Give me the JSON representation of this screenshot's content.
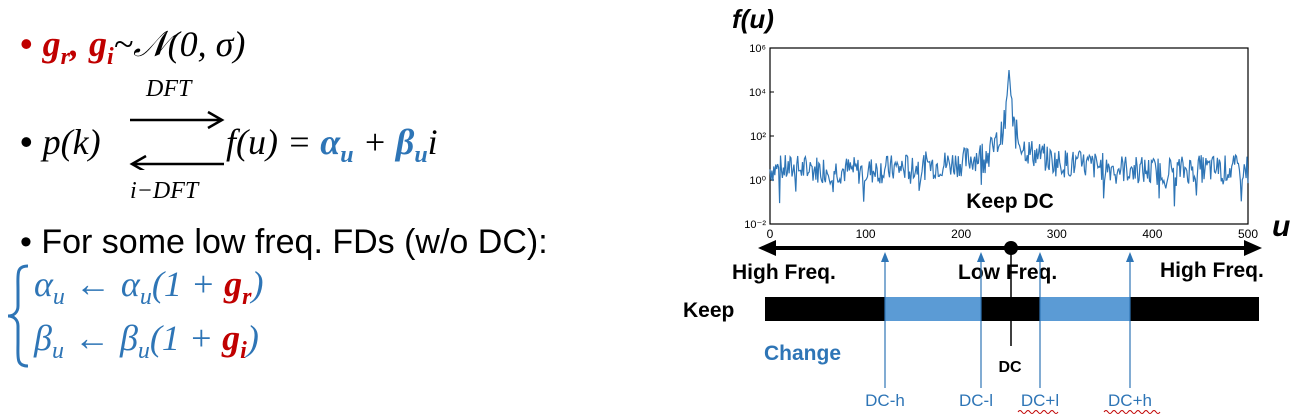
{
  "left": {
    "bullet1": {
      "gr": "g",
      "gr_sub": "r",
      "gi": "g",
      "gi_sub": "i",
      "sep": ",",
      "rest": "~𝒩(0, σ)"
    },
    "bullet2": {
      "lhs": "p(k)",
      "dft": "DFT",
      "idft": "i−DFT",
      "rhs1": "f(u) = ",
      "alpha": "α",
      "alpha_sub": "u",
      "plus": " + ",
      "beta": "β",
      "beta_sub": "u",
      "tail": "i"
    },
    "bullet3": {
      "text": "For some low freq. FDs (w/o DC):"
    },
    "eq1": {
      "lhs": "α",
      "lhs_sub": "u",
      "arrow": " ← ",
      "rhs": "α",
      "rhs_sub": "u",
      "paren": "(1 + ",
      "g": "g",
      "g_sub": "r",
      "close": ")"
    },
    "eq2": {
      "lhs": "β",
      "lhs_sub": "u",
      "arrow": " ← ",
      "rhs": "β",
      "rhs_sub": "u",
      "paren": "(1 + ",
      "g": "g",
      "g_sub": "i",
      "close": ")"
    }
  },
  "right": {
    "ylabel": "f(u)",
    "xlabel": "u",
    "keep_dc": "Keep DC",
    "high_freq_left": "High Freq.",
    "low_freq": "Low Freq.",
    "high_freq_right": "High Freq.",
    "keep": "Keep",
    "change": "Change",
    "dc": "DC",
    "markers": [
      "DC-h",
      "DC-l",
      "DC+l",
      "DC+h"
    ],
    "colors": {
      "line": "#2e75b6",
      "keep_bar": "#000000",
      "change_bar": "#5b9bd5"
    }
  },
  "chart_data": {
    "type": "line",
    "x_ticks": [
      "0",
      "100",
      "200",
      "300",
      "400",
      "500"
    ],
    "y_ticks": [
      "10⁻²",
      "10⁰",
      "10²",
      "10⁴",
      "10⁶"
    ],
    "xlim": [
      0,
      500
    ],
    "ylim_log10": [
      -2,
      6
    ],
    "yscale": "log",
    "series": [
      {
        "x": [
          0,
          50,
          100,
          150,
          200,
          230,
          240,
          246,
          250,
          254,
          260,
          270,
          300,
          350,
          400,
          450,
          500
        ],
        "y_log10": [
          0.5,
          0.5,
          0.4,
          0.6,
          0.8,
          1.3,
          1.8,
          2.7,
          5.0,
          2.7,
          1.8,
          1.3,
          0.8,
          0.6,
          0.4,
          0.5,
          0.5
        ]
      }
    ]
  }
}
